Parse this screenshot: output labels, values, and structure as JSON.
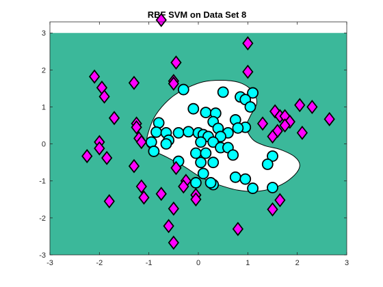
{
  "chart_data": {
    "type": "scatter",
    "title": "RBF SVM on Data Set 8",
    "xlabel": "",
    "ylabel": "",
    "xlim": [
      -3,
      3
    ],
    "ylim": [
      -3,
      3.3
    ],
    "x_ticks": [
      -3,
      -2,
      -1,
      0,
      1,
      2,
      3
    ],
    "y_ticks": [
      -3,
      -2,
      -1,
      0,
      1,
      2,
      3
    ],
    "grid": false,
    "colors": {
      "region_outside": "#3bb89a",
      "region_inside": "#ffffff",
      "boundary": "#000000",
      "class_circle": "#00ffff",
      "class_diamond": "#ff00ff",
      "marker_edge": "#000000"
    },
    "decision_region": {
      "fill_ylim": [
        -3,
        3
      ],
      "inside_class": "circles",
      "boundary": [
        [
          -1.05,
          0.05
        ],
        [
          -0.95,
          0.55
        ],
        [
          -0.8,
          0.9
        ],
        [
          -0.55,
          1.25
        ],
        [
          -0.25,
          1.5
        ],
        [
          0.1,
          1.68
        ],
        [
          0.5,
          1.72
        ],
        [
          0.85,
          1.65
        ],
        [
          1.1,
          1.42
        ],
        [
          1.18,
          1.1
        ],
        [
          1.05,
          0.75
        ],
        [
          0.97,
          0.45
        ],
        [
          1.1,
          0.12
        ],
        [
          1.35,
          -0.05
        ],
        [
          1.65,
          -0.15
        ],
        [
          1.95,
          -0.35
        ],
        [
          2.05,
          -0.6
        ],
        [
          1.9,
          -0.9
        ],
        [
          1.6,
          -1.15
        ],
        [
          1.2,
          -1.28
        ],
        [
          0.8,
          -1.25
        ],
        [
          0.4,
          -1.1
        ],
        [
          0.05,
          -0.9
        ],
        [
          -0.3,
          -0.6
        ],
        [
          -0.65,
          -0.35
        ],
        [
          -0.95,
          -0.15
        ]
      ]
    },
    "series": [
      {
        "marker": "circle",
        "points": [
          [
            -0.3,
            1.47
          ],
          [
            0.5,
            1.4
          ],
          [
            0.85,
            1.27
          ],
          [
            1.1,
            1.38
          ],
          [
            0.95,
            1.2
          ],
          [
            1.05,
            1.0
          ],
          [
            -0.1,
            0.95
          ],
          [
            0.15,
            0.85
          ],
          [
            0.35,
            0.83
          ],
          [
            0.75,
            0.65
          ],
          [
            -0.8,
            0.57
          ],
          [
            0.3,
            0.6
          ],
          [
            0.95,
            0.45
          ],
          [
            0.8,
            0.43
          ],
          [
            0.4,
            0.42
          ],
          [
            -0.85,
            0.32
          ],
          [
            -0.65,
            0.3
          ],
          [
            -0.4,
            0.3
          ],
          [
            -0.2,
            0.33
          ],
          [
            0.0,
            0.3
          ],
          [
            0.1,
            0.25
          ],
          [
            0.6,
            0.3
          ],
          [
            0.45,
            0.2
          ],
          [
            0.2,
            0.2
          ],
          [
            -0.6,
            0.1
          ],
          [
            -0.95,
            0.05
          ],
          [
            0.05,
            0.05
          ],
          [
            0.3,
            0.05
          ],
          [
            -0.65,
            0.0
          ],
          [
            0.45,
            -0.1
          ],
          [
            -0.9,
            -0.2
          ],
          [
            -0.05,
            -0.25
          ],
          [
            0.15,
            -0.25
          ],
          [
            0.6,
            -0.1
          ],
          [
            0.7,
            -0.3
          ],
          [
            1.5,
            -0.33
          ],
          [
            -0.4,
            -0.47
          ],
          [
            0.05,
            -0.5
          ],
          [
            0.3,
            -0.5
          ],
          [
            1.4,
            -0.55
          ],
          [
            0.75,
            -0.9
          ],
          [
            0.1,
            -0.8
          ],
          [
            0.95,
            -0.95
          ],
          [
            -0.05,
            -1.05
          ],
          [
            0.3,
            -1.1
          ],
          [
            1.5,
            -1.18
          ],
          [
            1.1,
            -1.2
          ],
          [
            0.25,
            -1.05
          ]
        ]
      },
      {
        "marker": "diamond",
        "points": [
          [
            -0.75,
            3.35
          ],
          [
            1.0,
            2.72
          ],
          [
            -0.45,
            2.2
          ],
          [
            1.0,
            1.95
          ],
          [
            -2.1,
            1.82
          ],
          [
            -1.95,
            1.52
          ],
          [
            -0.5,
            1.7
          ],
          [
            -0.5,
            1.63
          ],
          [
            -1.3,
            1.65
          ],
          [
            -1.9,
            1.28
          ],
          [
            -2.0,
            0.05
          ],
          [
            1.55,
            0.88
          ],
          [
            1.65,
            0.75
          ],
          [
            1.75,
            0.75
          ],
          [
            1.85,
            0.6
          ],
          [
            2.05,
            1.05
          ],
          [
            2.3,
            1.0
          ],
          [
            2.65,
            0.67
          ],
          [
            -1.7,
            0.7
          ],
          [
            1.3,
            0.55
          ],
          [
            1.75,
            0.5
          ],
          [
            -1.25,
            0.55
          ],
          [
            -1.25,
            0.45
          ],
          [
            1.6,
            0.35
          ],
          [
            2.1,
            0.3
          ],
          [
            -1.2,
            0.15
          ],
          [
            1.5,
            0.2
          ],
          [
            -1.15,
            0.05
          ],
          [
            -2.0,
            -0.12
          ],
          [
            -2.25,
            -0.33
          ],
          [
            -1.85,
            -0.38
          ],
          [
            -1.3,
            -0.6
          ],
          [
            -0.45,
            -0.65
          ],
          [
            -0.25,
            -1.0
          ],
          [
            -1.15,
            -1.15
          ],
          [
            -0.3,
            -1.15
          ],
          [
            -1.1,
            -1.45
          ],
          [
            -0.75,
            -1.35
          ],
          [
            -0.05,
            -1.38
          ],
          [
            -0.05,
            -1.5
          ],
          [
            -1.8,
            -1.55
          ],
          [
            1.65,
            -1.52
          ],
          [
            1.5,
            -1.77
          ],
          [
            -0.5,
            -1.75
          ],
          [
            -0.6,
            -2.22
          ],
          [
            0.8,
            -2.3
          ],
          [
            -0.5,
            -2.67
          ]
        ]
      }
    ]
  }
}
